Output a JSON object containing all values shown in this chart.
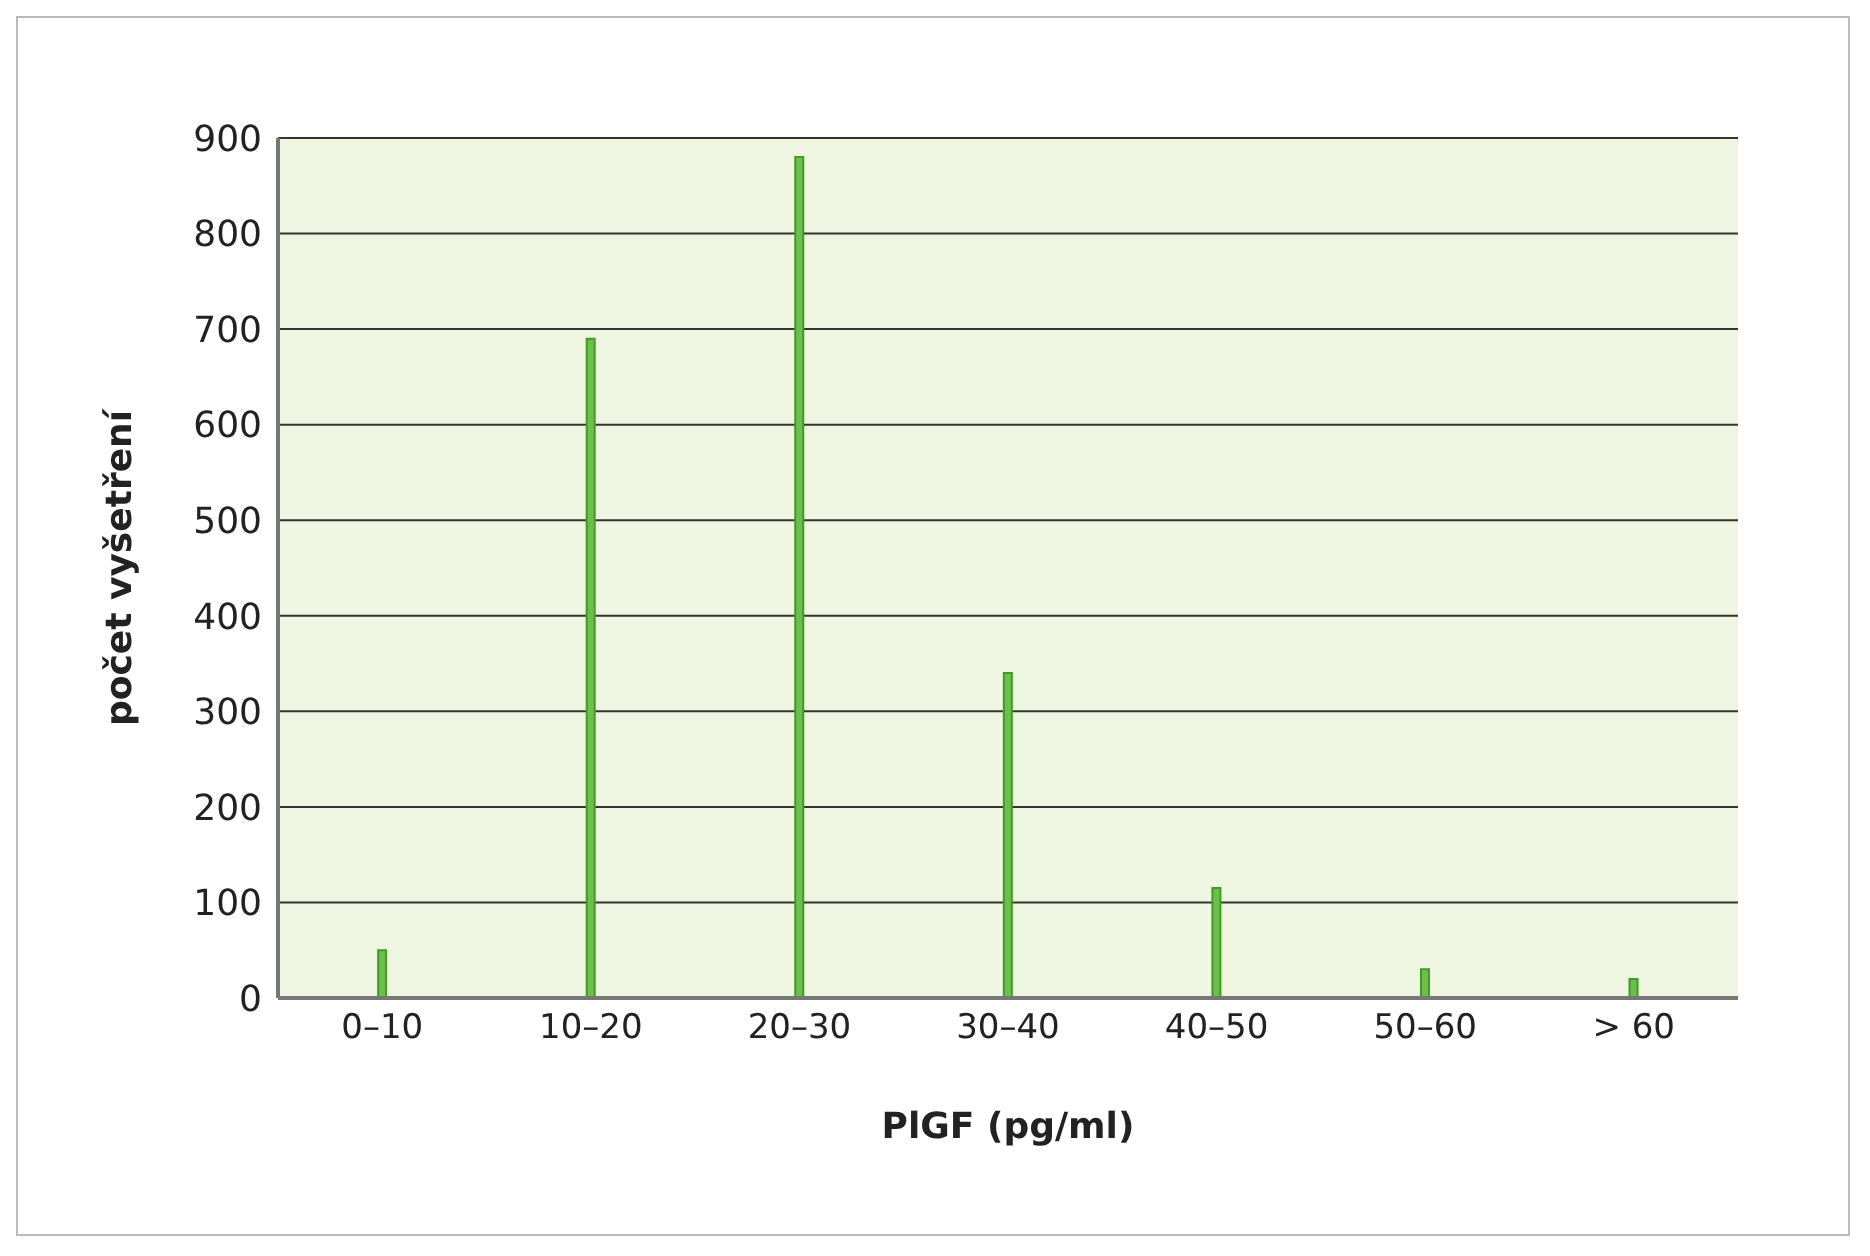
{
  "chart_data": {
    "type": "bar",
    "xlabel": "PlGF (pg/ml)",
    "ylabel": "počet vyšetření",
    "categories": [
      "0–10",
      "10–20",
      "20–30",
      "30–40",
      "40–50",
      "50–60",
      "> 60"
    ],
    "values": [
      50,
      690,
      880,
      340,
      115,
      30,
      20
    ],
    "color": "#6cc04a",
    "ylim": [
      0,
      900
    ],
    "yticks": [
      0,
      100,
      200,
      300,
      400,
      500,
      600,
      700,
      800,
      900
    ],
    "grid": "y"
  }
}
